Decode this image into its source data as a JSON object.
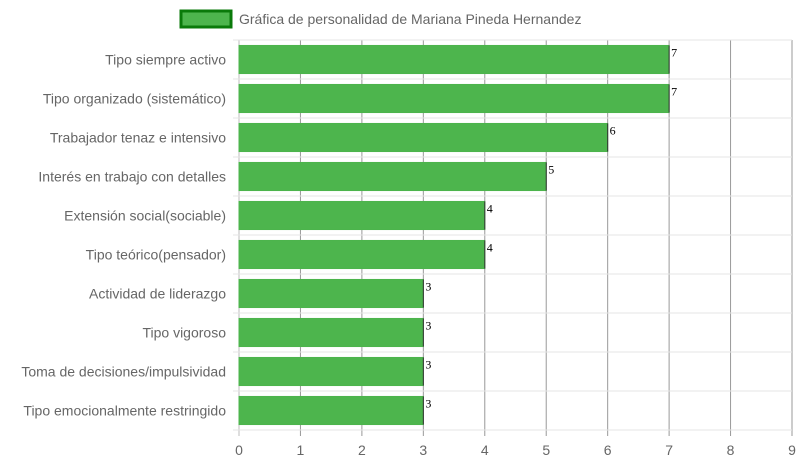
{
  "chart_data": {
    "type": "bar",
    "orientation": "horizontal",
    "title": "",
    "xlabel": "",
    "ylabel": "",
    "categories": [
      "Tipo siempre activo",
      "Tipo organizado (sistemático)",
      "Trabajador tenaz e intensivo",
      "Interés en trabajo con detalles",
      "Extensión social(sociable)",
      "Tipo teórico(pensador)",
      "Actividad de liderazgo",
      "Tipo vigoroso",
      "Toma de decisiones/impulsividad",
      "Tipo emocionalmente restringido"
    ],
    "series": [
      {
        "name": "Gráfica de personalidad de Mariana Pineda Hernandez",
        "values": [
          7,
          7,
          6,
          5,
          4,
          4,
          3,
          3,
          3,
          3
        ],
        "color": "#4db54d",
        "border_color": "#0a7a0a"
      }
    ],
    "xlim": [
      0,
      9
    ],
    "x_ticks": [
      "0",
      "1",
      "2",
      "3",
      "4",
      "5",
      "6",
      "7",
      "8",
      "9"
    ],
    "data_labels": [
      "7",
      "7",
      "6",
      "5",
      "4",
      "4",
      "3",
      "3",
      "3",
      "3"
    ],
    "grid": true,
    "legend_position": "top-center"
  }
}
